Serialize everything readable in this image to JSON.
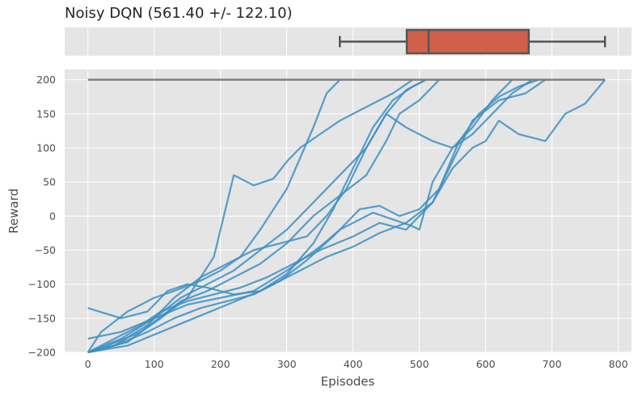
{
  "chart_data": [
    {
      "type": "box",
      "title": "Noisy DQN (561.40 +/- 122.10)",
      "orientation": "horizontal",
      "stats": {
        "whisker_low": 380,
        "q1": 481,
        "median": 514,
        "q3": 665,
        "whisker_high": 780
      },
      "box_color": "#d0604a",
      "xlim": [
        -35,
        820
      ]
    },
    {
      "type": "line",
      "xlabel": "Episodes",
      "ylabel": "Reward",
      "xlim": [
        -35,
        820
      ],
      "ylim": [
        -200,
        215
      ],
      "x_ticks": [
        0,
        100,
        200,
        300,
        400,
        500,
        600,
        700,
        800
      ],
      "y_ticks": [
        -200,
        -150,
        -100,
        -50,
        0,
        50,
        100,
        150,
        200
      ],
      "x_tick_labels": [
        "0",
        "100",
        "200",
        "300",
        "400",
        "500",
        "600",
        "700",
        "800"
      ],
      "y_tick_labels": [
        "−200",
        "−150",
        "−100",
        "−50",
        "0",
        "50",
        "100",
        "150",
        "200"
      ],
      "grid": true,
      "background": "#e5e5e5",
      "line_color": "#3b8fc3",
      "reference_line": {
        "y": 200,
        "x": [
          0,
          780
        ],
        "color": "#7f7f7f"
      },
      "series": [
        {
          "x": [
            0,
            20,
            60,
            100,
            130,
            170,
            200,
            230,
            260,
            300,
            340,
            360,
            380
          ],
          "y": [
            -200,
            -170,
            -140,
            -120,
            -110,
            -95,
            -80,
            -60,
            -20,
            40,
            130,
            180,
            200
          ]
        },
        {
          "x": [
            0,
            30,
            80,
            110,
            150,
            190,
            220,
            250,
            280,
            300,
            320,
            350,
            380,
            420,
            460,
            490
          ],
          "y": [
            -200,
            -190,
            -170,
            -150,
            -120,
            -60,
            60,
            45,
            55,
            80,
            100,
            120,
            140,
            160,
            180,
            200
          ]
        },
        {
          "x": [
            0,
            40,
            90,
            130,
            170,
            210,
            250,
            290,
            330,
            360,
            390,
            420,
            450,
            480,
            510
          ],
          "y": [
            -200,
            -190,
            -160,
            -120,
            -90,
            -70,
            -50,
            -40,
            -30,
            0,
            40,
            100,
            150,
            185,
            200
          ]
        },
        {
          "x": [
            0,
            50,
            90,
            120,
            150,
            180,
            220,
            260,
            300,
            340,
            370,
            400,
            430,
            460,
            490,
            510
          ],
          "y": [
            -135,
            -150,
            -140,
            -110,
            -100,
            -105,
            -115,
            -110,
            -85,
            -40,
            10,
            70,
            130,
            170,
            190,
            200
          ]
        },
        {
          "x": [
            0,
            60,
            100,
            140,
            180,
            220,
            260,
            300,
            340,
            380,
            420,
            450,
            470,
            500,
            530
          ],
          "y": [
            -200,
            -185,
            -155,
            -125,
            -110,
            -90,
            -70,
            -40,
            0,
            30,
            60,
            110,
            150,
            170,
            200
          ]
        },
        {
          "x": [
            0,
            50,
            100,
            140,
            180,
            220,
            260,
            300,
            340,
            380,
            420,
            450,
            480,
            520,
            550,
            580,
            610,
            640
          ],
          "y": [
            -180,
            -170,
            -150,
            -120,
            -100,
            -80,
            -50,
            -20,
            20,
            60,
            100,
            150,
            130,
            110,
            100,
            130,
            170,
            200
          ]
        },
        {
          "x": [
            0,
            40,
            80,
            110,
            150,
            190,
            230,
            270,
            310,
            350,
            400,
            440,
            480,
            500,
            520,
            550,
            580,
            620,
            660,
            690
          ],
          "y": [
            -200,
            -180,
            -160,
            -140,
            -125,
            -115,
            -105,
            -90,
            -70,
            -50,
            -30,
            -10,
            -20,
            0,
            20,
            80,
            140,
            170,
            180,
            200
          ]
        },
        {
          "x": [
            0,
            40,
            90,
            130,
            170,
            210,
            250,
            290,
            330,
            370,
            410,
            440,
            470,
            500,
            530,
            560,
            590,
            620,
            650,
            680
          ],
          "y": [
            -200,
            -190,
            -170,
            -150,
            -135,
            -125,
            -115,
            -95,
            -65,
            -30,
            10,
            15,
            0,
            10,
            40,
            110,
            150,
            175,
            190,
            200
          ]
        },
        {
          "x": [
            0,
            50,
            100,
            150,
            200,
            250,
            300,
            350,
            380,
            400,
            430,
            460,
            490,
            500,
            520,
            550,
            580,
            610,
            640,
            670
          ],
          "y": [
            -200,
            -180,
            -150,
            -130,
            -120,
            -110,
            -80,
            -45,
            -20,
            -10,
            5,
            -5,
            -15,
            -20,
            50,
            100,
            120,
            150,
            180,
            200
          ]
        },
        {
          "x": [
            0,
            60,
            110,
            160,
            210,
            260,
            310,
            360,
            400,
            440,
            480,
            520,
            550,
            580,
            600,
            620,
            650,
            690,
            720,
            750,
            780
          ],
          "y": [
            -200,
            -190,
            -170,
            -150,
            -130,
            -110,
            -85,
            -60,
            -45,
            -25,
            -10,
            20,
            70,
            100,
            110,
            140,
            120,
            110,
            150,
            165,
            200
          ]
        }
      ]
    }
  ]
}
